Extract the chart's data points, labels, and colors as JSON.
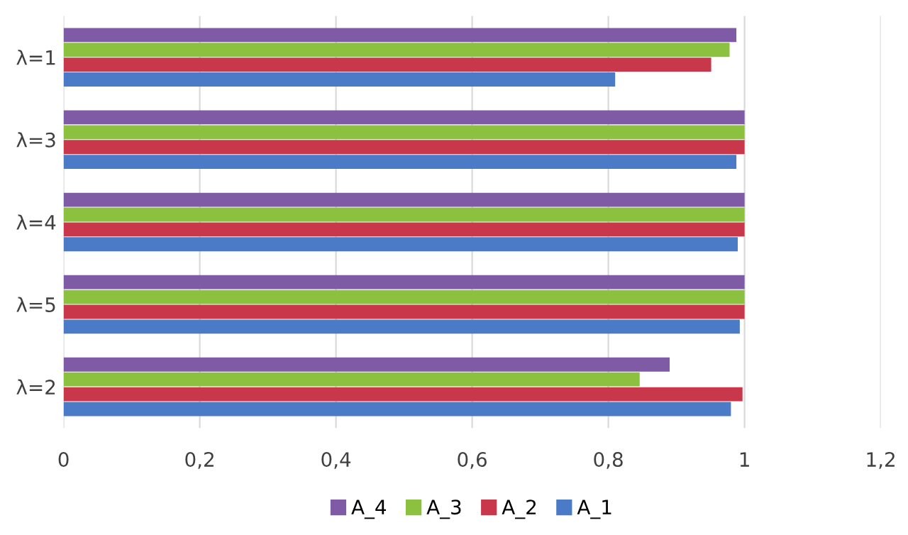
{
  "chart_data": {
    "type": "bar",
    "orientation": "horizontal",
    "categories": [
      "λ=1",
      "λ=3",
      "λ=4",
      "λ=5",
      "λ=2"
    ],
    "series": [
      {
        "name": "A_4",
        "color": "#7f5ba6",
        "values": [
          0.988,
          1,
          1,
          1,
          0.89
        ]
      },
      {
        "name": "A_3",
        "color": "#8cc13f",
        "values": [
          0.978,
          1,
          1,
          1,
          0.846
        ]
      },
      {
        "name": "A_2",
        "color": "#c8384a",
        "values": [
          0.951,
          1,
          1,
          1,
          0.997
        ]
      },
      {
        "name": "A_1",
        "color": "#4b7bc6",
        "values": [
          0.81,
          0.988,
          0.99,
          0.993,
          0.98
        ]
      }
    ],
    "xlim": [
      0,
      1.2
    ],
    "xticks": [
      {
        "value": 0,
        "label": "0"
      },
      {
        "value": 0.2,
        "label": "0,2"
      },
      {
        "value": 0.4,
        "label": "0,4"
      },
      {
        "value": 0.6,
        "label": "0,6"
      },
      {
        "value": 0.8,
        "label": "0,8"
      },
      {
        "value": 1,
        "label": "1"
      },
      {
        "value": 1.2,
        "label": "1,2"
      }
    ],
    "grid": "x",
    "legend": "bottom"
  }
}
